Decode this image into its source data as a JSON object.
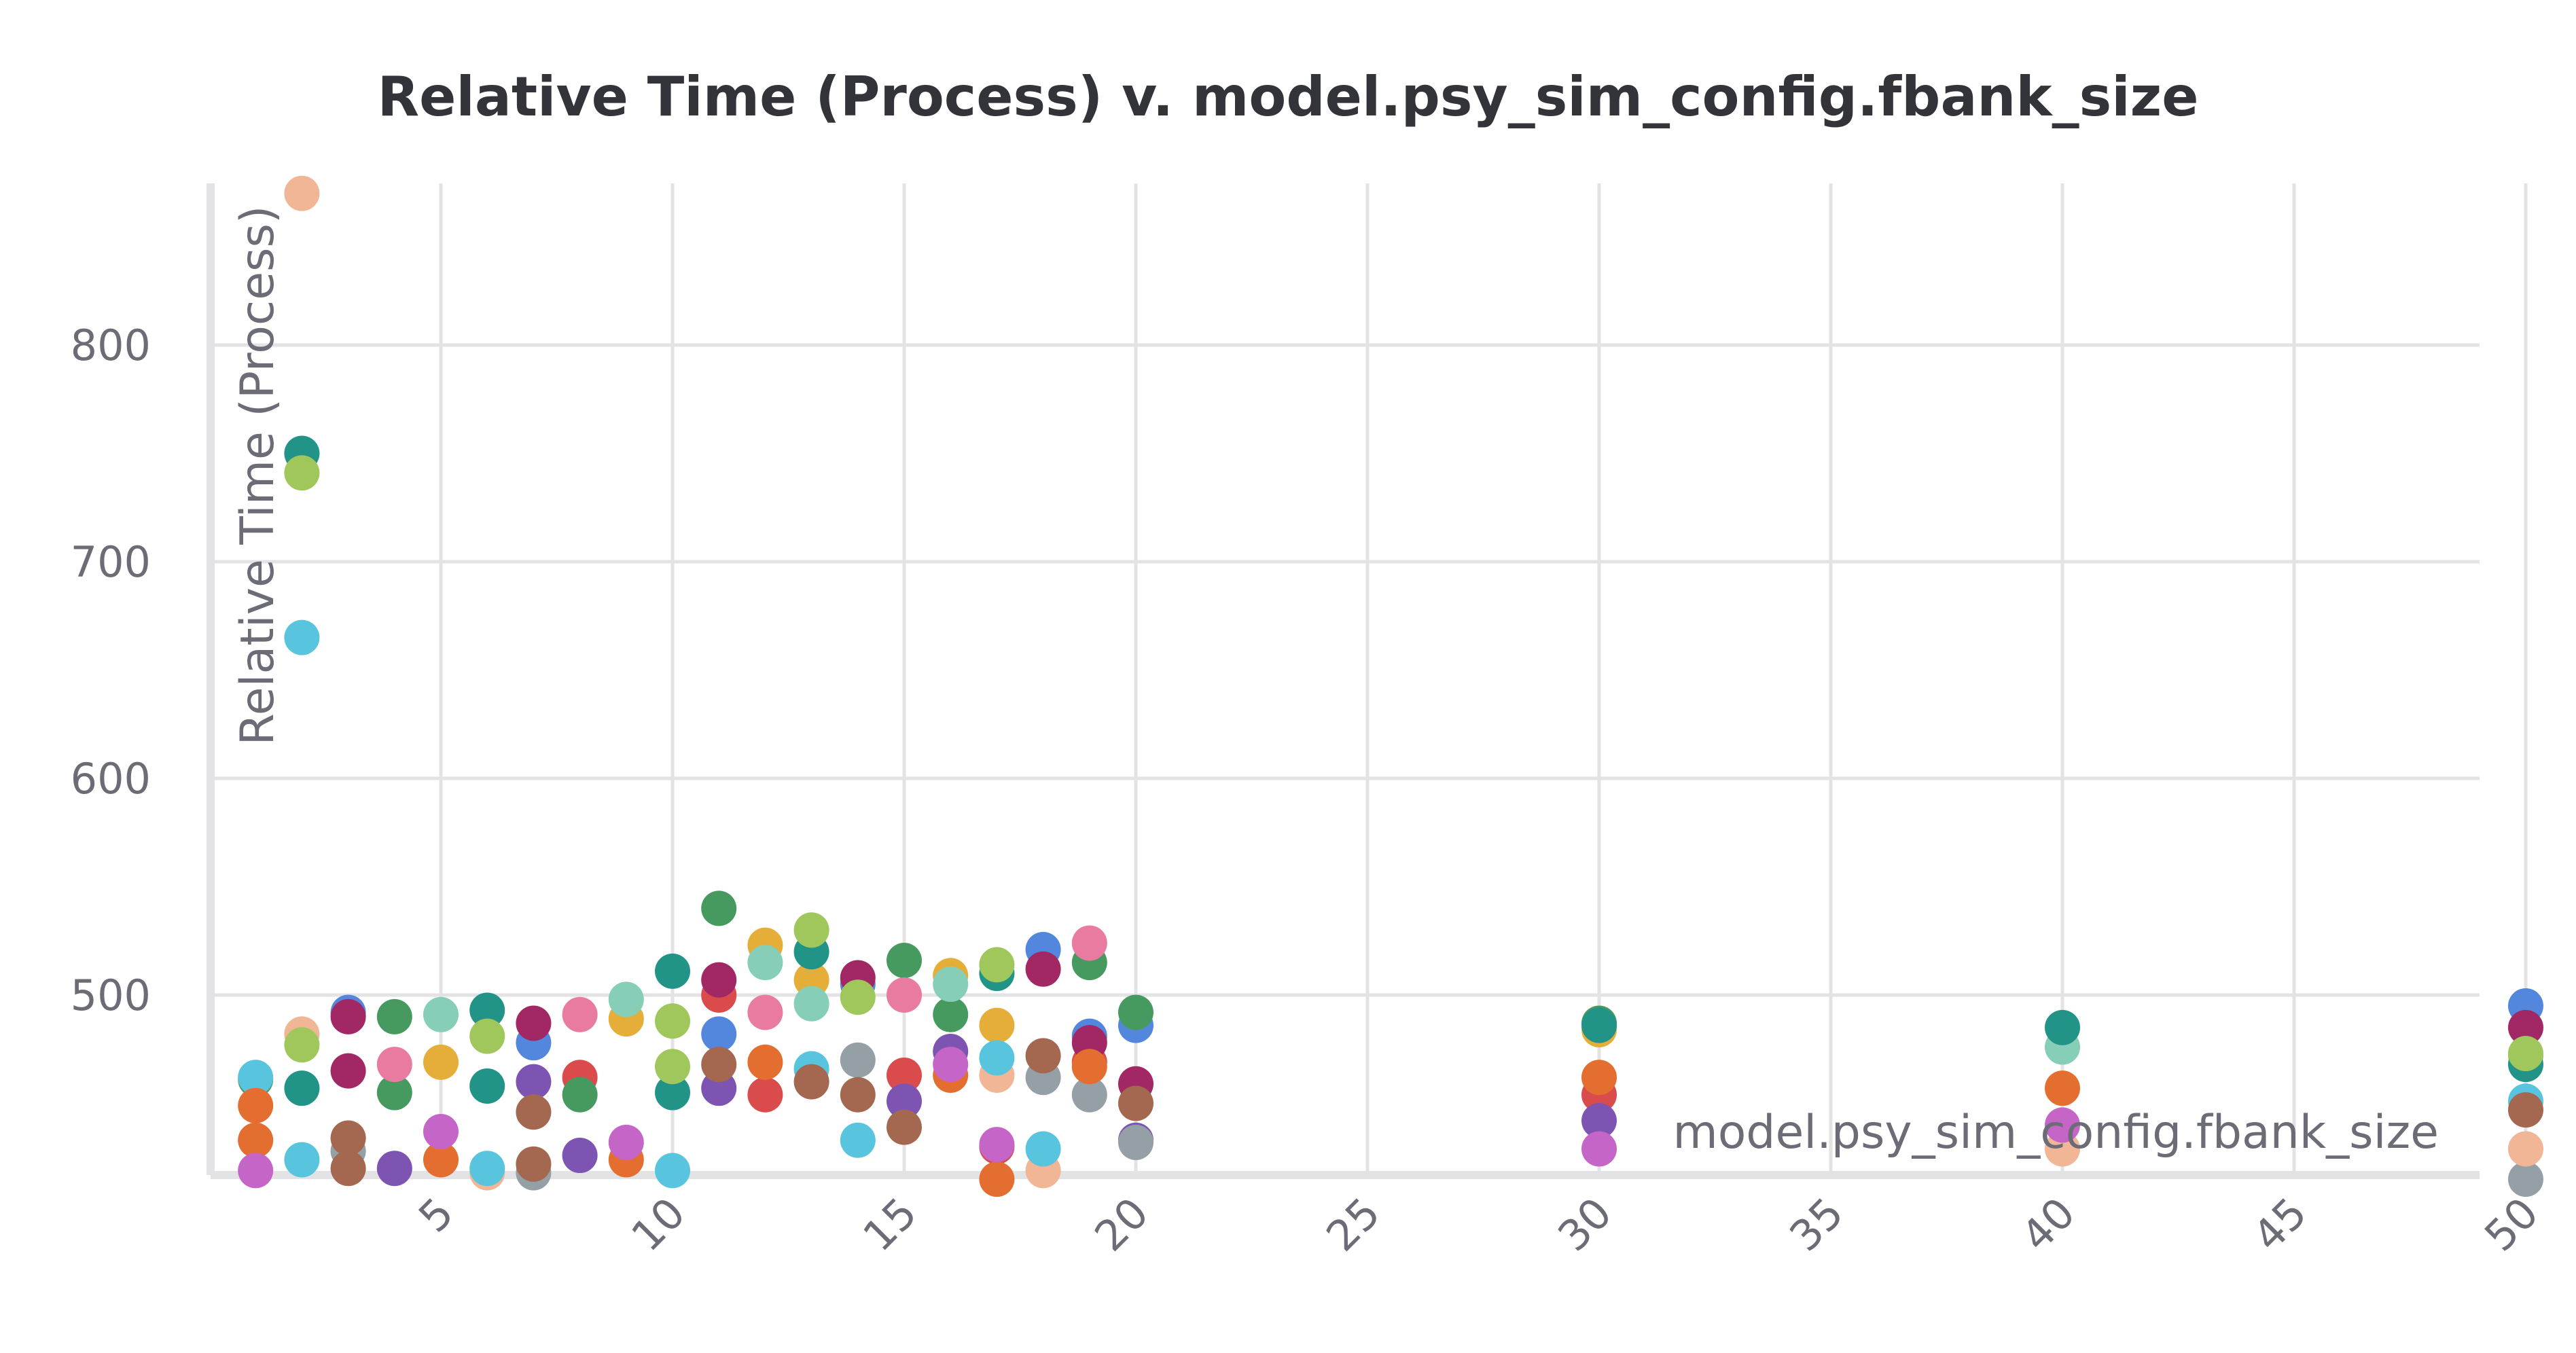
{
  "chart_data": {
    "type": "scatter",
    "title": "Relative Time (Process) v. model.psy_sim_config.fbank_size",
    "xlabel": "model.psy_sim_config.fbank_size",
    "ylabel": "Relative Time (Process)",
    "xlim": [
      0,
      50
    ],
    "ylim": [
      413,
      870
    ],
    "x_ticks": [
      "5",
      "10",
      "15",
      "20",
      "25",
      "30",
      "35",
      "40",
      "45",
      "50"
    ],
    "y_ticks": [
      "500",
      "600",
      "700",
      "800"
    ],
    "grid": true,
    "legend": "none",
    "series": [
      {
        "color": "#5387dd",
        "points": [
          [
            3,
            492
          ],
          [
            7,
            478
          ],
          [
            11,
            482
          ],
          [
            14,
            505
          ],
          [
            18,
            521
          ],
          [
            19,
            481
          ],
          [
            20,
            486
          ],
          [
            50,
            495
          ]
        ]
      },
      {
        "color": "#da4c4c",
        "points": [
          [
            8,
            462
          ],
          [
            11,
            500
          ],
          [
            12,
            454
          ],
          [
            15,
            463
          ],
          [
            17,
            430
          ],
          [
            19,
            469
          ],
          [
            30,
            454
          ]
        ]
      },
      {
        "color": "#479a5f",
        "points": [
          [
            1,
            461
          ],
          [
            4,
            490
          ],
          [
            4,
            455
          ],
          [
            8,
            454
          ],
          [
            11,
            540
          ],
          [
            15,
            516
          ],
          [
            16,
            491
          ],
          [
            19,
            515
          ],
          [
            20,
            492
          ],
          [
            30,
            487
          ]
        ]
      },
      {
        "color": "#7d54b2",
        "points": [
          [
            4,
            420
          ],
          [
            7,
            460
          ],
          [
            8,
            426
          ],
          [
            11,
            457
          ],
          [
            15,
            451
          ],
          [
            16,
            474
          ],
          [
            20,
            433
          ],
          [
            30,
            442
          ]
        ]
      },
      {
        "color": "#e87b9f",
        "points": [
          [
            4,
            468
          ],
          [
            8,
            491
          ],
          [
            12,
            492
          ],
          [
            15,
            500
          ],
          [
            19,
            524
          ]
        ]
      },
      {
        "color": "#e5ae38",
        "points": [
          [
            5,
            469
          ],
          [
            9,
            489
          ],
          [
            12,
            523
          ],
          [
            13,
            507
          ],
          [
            16,
            509
          ],
          [
            17,
            486
          ],
          [
            30,
            484
          ],
          [
            50,
            472
          ]
        ]
      },
      {
        "color": "#a12864",
        "points": [
          [
            3,
            465
          ],
          [
            3,
            490
          ],
          [
            7,
            487
          ],
          [
            11,
            507
          ],
          [
            14,
            508
          ],
          [
            18,
            512
          ],
          [
            19,
            478
          ],
          [
            20,
            459
          ],
          [
            50,
            485
          ]
        ]
      },
      {
        "color": "#87ceb9",
        "points": [
          [
            5,
            491
          ],
          [
            9,
            498
          ],
          [
            12,
            515
          ],
          [
            13,
            496
          ],
          [
            16,
            505
          ],
          [
            40,
            476
          ]
        ]
      },
      {
        "color": "#94a0a6",
        "points": [
          [
            3,
            428
          ],
          [
            7,
            418
          ],
          [
            14,
            470
          ],
          [
            18,
            462
          ],
          [
            19,
            454
          ],
          [
            20,
            432
          ],
          [
            50,
            415
          ]
        ]
      },
      {
        "color": "#f1b696",
        "points": [
          [
            2,
            870
          ],
          [
            2,
            482
          ],
          [
            6,
            418
          ],
          [
            17,
            463
          ],
          [
            18,
            419
          ],
          [
            40,
            429
          ],
          [
            50,
            429
          ]
        ]
      },
      {
        "color": "#229487",
        "points": [
          [
            2,
            750
          ],
          [
            2,
            457
          ],
          [
            6,
            493
          ],
          [
            6,
            458
          ],
          [
            10,
            511
          ],
          [
            10,
            455
          ],
          [
            13,
            520
          ],
          [
            17,
            510
          ],
          [
            30,
            486
          ],
          [
            40,
            485
          ],
          [
            50,
            468
          ]
        ]
      },
      {
        "color": "#a0c75c",
        "points": [
          [
            2,
            741
          ],
          [
            2,
            477
          ],
          [
            6,
            481
          ],
          [
            10,
            488
          ],
          [
            10,
            467
          ],
          [
            13,
            530
          ],
          [
            14,
            499
          ],
          [
            17,
            514
          ],
          [
            50,
            473
          ]
        ]
      },
      {
        "color": "#58c4dd",
        "points": [
          [
            1,
            462
          ],
          [
            2,
            665
          ],
          [
            2,
            424
          ],
          [
            6,
            420
          ],
          [
            10,
            419
          ],
          [
            13,
            466
          ],
          [
            14,
            433
          ],
          [
            17,
            471
          ],
          [
            18,
            429
          ],
          [
            50,
            451
          ]
        ]
      },
      {
        "color": "#e46e30",
        "points": [
          [
            1,
            449
          ],
          [
            1,
            433
          ],
          [
            5,
            424
          ],
          [
            9,
            424
          ],
          [
            12,
            469
          ],
          [
            16,
            463
          ],
          [
            17,
            415
          ],
          [
            19,
            467
          ],
          [
            30,
            462
          ],
          [
            40,
            457
          ]
        ]
      },
      {
        "color": "#a46750",
        "points": [
          [
            3,
            420
          ],
          [
            3,
            434
          ],
          [
            7,
            422
          ],
          [
            7,
            446
          ],
          [
            11,
            468
          ],
          [
            13,
            460
          ],
          [
            14,
            454
          ],
          [
            15,
            439
          ],
          [
            18,
            472
          ],
          [
            20,
            450
          ],
          [
            50,
            447
          ]
        ]
      },
      {
        "color": "#c565c7",
        "points": [
          [
            1,
            419
          ],
          [
            5,
            437
          ],
          [
            9,
            432
          ],
          [
            16,
            468
          ],
          [
            17,
            431
          ],
          [
            30,
            429
          ],
          [
            40,
            440
          ]
        ]
      }
    ]
  }
}
